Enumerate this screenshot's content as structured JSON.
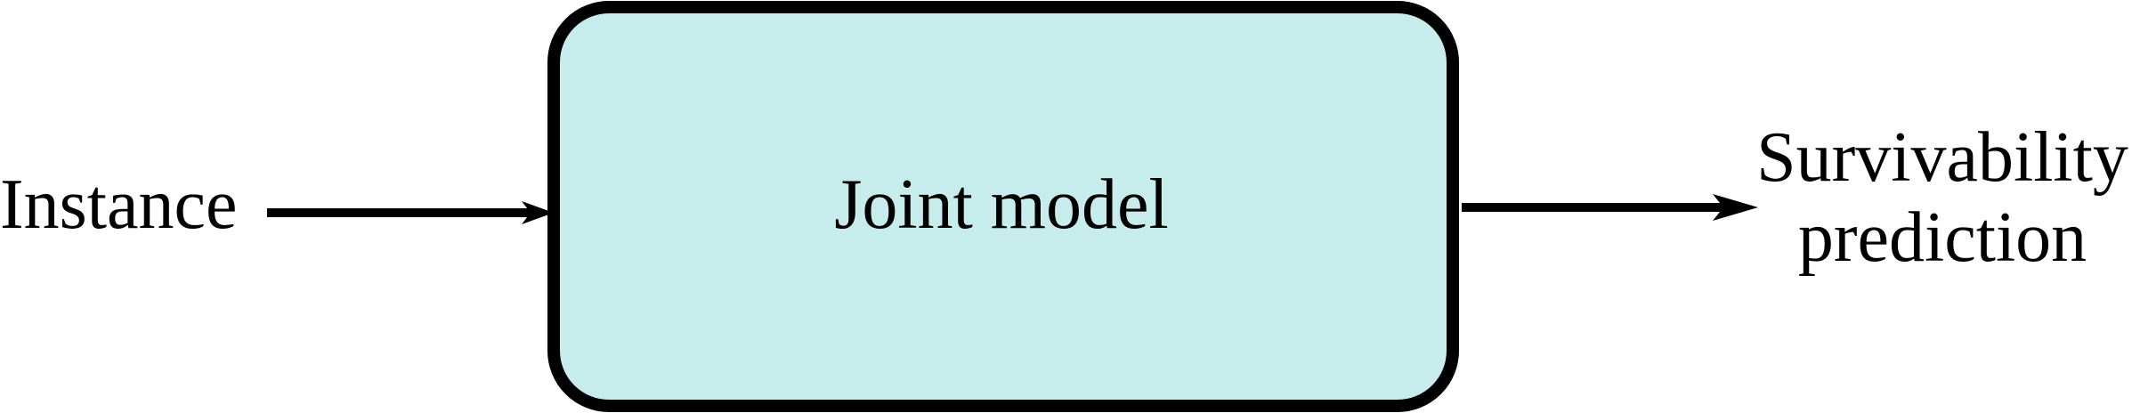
{
  "diagram": {
    "input_label": "Instance",
    "box_label": "Joint model",
    "output_label_line1": "Survivability",
    "output_label_line2": "prediction"
  },
  "colors": {
    "box_fill": "#c7ecec",
    "stroke": "#000000"
  }
}
